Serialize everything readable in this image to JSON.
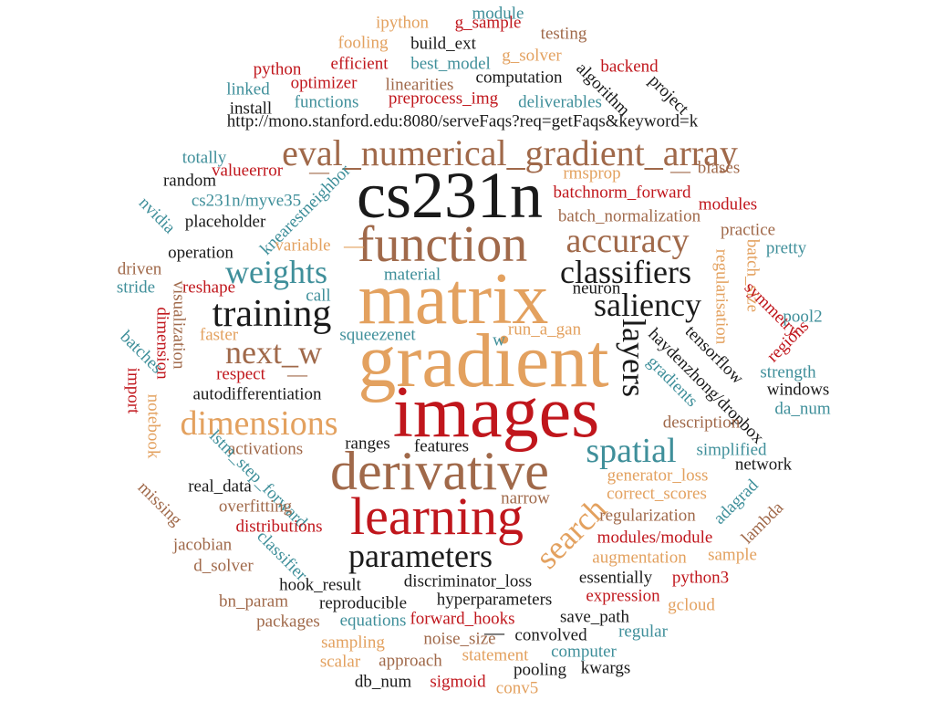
{
  "colors": {
    "dark": "#1a1a1a",
    "red": "#c0161c",
    "brown": "#a0694a",
    "tan": "#e3a15f",
    "teal": "#3f8f9a"
  },
  "words": [
    {
      "id": "cs231n",
      "text": "cs231n",
      "color": "dark"
    },
    {
      "id": "function",
      "text": "function",
      "color": "brown"
    },
    {
      "id": "matrix",
      "text": "matrix",
      "color": "tan"
    },
    {
      "id": "gradient",
      "text": "gradient",
      "color": "tan"
    },
    {
      "id": "images",
      "text": "images",
      "color": "red"
    },
    {
      "id": "derivative",
      "text": "derivative",
      "color": "brown"
    },
    {
      "id": "learning",
      "text": "learning",
      "color": "red"
    },
    {
      "id": "eval",
      "text": "eval_numerical_gradient_array",
      "color": "brown"
    },
    {
      "id": "accuracy",
      "text": "accuracy",
      "color": "brown"
    },
    {
      "id": "classifiers",
      "text": "classifiers",
      "color": "dark"
    },
    {
      "id": "weights",
      "text": "weights",
      "color": "teal"
    },
    {
      "id": "saliency",
      "text": "saliency",
      "color": "dark"
    },
    {
      "id": "training",
      "text": "training",
      "color": "dark"
    },
    {
      "id": "next_w",
      "text": "next_w",
      "color": "brown"
    },
    {
      "id": "dimensions",
      "text": "dimensions",
      "color": "tan"
    },
    {
      "id": "spatial",
      "text": "spatial",
      "color": "teal"
    },
    {
      "id": "parameters",
      "text": "parameters",
      "color": "dark"
    },
    {
      "id": "layers",
      "text": "layers",
      "color": "dark"
    },
    {
      "id": "search",
      "text": "search",
      "color": "tan"
    },
    {
      "id": "url",
      "text": "http://mono.stanford.edu:8080/serveFaqs?req=getFaqs&keyword=k",
      "color": "dark"
    },
    {
      "id": "ipython",
      "text": "ipython",
      "color": "tan"
    },
    {
      "id": "g_sample",
      "text": "g_sample",
      "color": "red"
    },
    {
      "id": "module",
      "text": "module",
      "color": "teal"
    },
    {
      "id": "fooling",
      "text": "fooling",
      "color": "tan"
    },
    {
      "id": "build_ext",
      "text": "build_ext",
      "color": "dark"
    },
    {
      "id": "testing",
      "text": "testing",
      "color": "brown"
    },
    {
      "id": "g_solver",
      "text": "g_solver",
      "color": "tan"
    },
    {
      "id": "python",
      "text": "python",
      "color": "red"
    },
    {
      "id": "efficient",
      "text": "efficient",
      "color": "red"
    },
    {
      "id": "best_model",
      "text": "best_model",
      "color": "teal"
    },
    {
      "id": "computation",
      "text": "computation",
      "color": "dark"
    },
    {
      "id": "backend",
      "text": "backend",
      "color": "red"
    },
    {
      "id": "algorithm",
      "text": "algorithm",
      "color": "dark"
    },
    {
      "id": "optimizer",
      "text": "optimizer",
      "color": "red"
    },
    {
      "id": "linearities",
      "text": "linearities",
      "color": "brown"
    },
    {
      "id": "linked",
      "text": "linked",
      "color": "teal"
    },
    {
      "id": "project",
      "text": "project",
      "color": "dark"
    },
    {
      "id": "preprocess_img",
      "text": "preprocess_img",
      "color": "red"
    },
    {
      "id": "functions",
      "text": "functions",
      "color": "teal"
    },
    {
      "id": "deliverables",
      "text": "deliverables",
      "color": "teal"
    },
    {
      "id": "install",
      "text": "install",
      "color": "dark"
    },
    {
      "id": "totally",
      "text": "totally",
      "color": "teal"
    },
    {
      "id": "rmsprop",
      "text": "rmsprop",
      "color": "tan"
    },
    {
      "id": "biases",
      "text": "biases",
      "color": "brown"
    },
    {
      "id": "random",
      "text": "random",
      "color": "dark"
    },
    {
      "id": "valueerror",
      "text": "valueerror",
      "color": "red"
    },
    {
      "id": "myve35",
      "text": "cs231n/myve35",
      "color": "teal"
    },
    {
      "id": "batchnorm_forward",
      "text": "batchnorm_forward",
      "color": "red"
    },
    {
      "id": "modules",
      "text": "modules",
      "color": "red"
    },
    {
      "id": "knearest",
      "text": "knearestneighbor",
      "color": "teal"
    },
    {
      "id": "nvidia",
      "text": "nvidia",
      "color": "teal"
    },
    {
      "id": "placeholder",
      "text": "placeholder",
      "color": "dark"
    },
    {
      "id": "batch_norm",
      "text": "batch_normalization",
      "color": "brown"
    },
    {
      "id": "practice",
      "text": "practice",
      "color": "brown"
    },
    {
      "id": "operation",
      "text": "operation",
      "color": "dark"
    },
    {
      "id": "variable",
      "text": "variable",
      "color": "tan"
    },
    {
      "id": "pretty",
      "text": "pretty",
      "color": "teal"
    },
    {
      "id": "driven",
      "text": "driven",
      "color": "brown"
    },
    {
      "id": "regularisation",
      "text": "regularisation",
      "color": "tan"
    },
    {
      "id": "batch_size",
      "text": "batch_size",
      "color": "tan"
    },
    {
      "id": "symmetry",
      "text": "symmetry",
      "color": "red"
    },
    {
      "id": "material",
      "text": "material",
      "color": "teal"
    },
    {
      "id": "stride",
      "text": "stride",
      "color": "teal"
    },
    {
      "id": "reshape",
      "text": "reshape",
      "color": "red"
    },
    {
      "id": "call",
      "text": "call",
      "color": "teal"
    },
    {
      "id": "neuron",
      "text": "neuron",
      "color": "dark"
    },
    {
      "id": "visualization",
      "text": "visualization",
      "color": "brown"
    },
    {
      "id": "tensorflow",
      "text": "tensorflow",
      "color": "dark"
    },
    {
      "id": "pool2",
      "text": "pool2",
      "color": "teal"
    },
    {
      "id": "dimension",
      "text": "dimension",
      "color": "red"
    },
    {
      "id": "squeezenet",
      "text": "squeezenet",
      "color": "teal"
    },
    {
      "id": "run_a_gan",
      "text": "run_a_gan",
      "color": "tan"
    },
    {
      "id": "w",
      "text": "w",
      "color": "teal"
    },
    {
      "id": "regions",
      "text": "regions",
      "color": "red"
    },
    {
      "id": "faster",
      "text": "faster",
      "color": "tan"
    },
    {
      "id": "haydenzhong",
      "text": "haydenzhong/dropbox",
      "color": "dark"
    },
    {
      "id": "batches",
      "text": "batches",
      "color": "teal"
    },
    {
      "id": "respect",
      "text": "respect",
      "color": "red"
    },
    {
      "id": "gradients",
      "text": "gradients",
      "color": "teal"
    },
    {
      "id": "strength",
      "text": "strength",
      "color": "teal"
    },
    {
      "id": "import",
      "text": "import",
      "color": "red"
    },
    {
      "id": "notebook",
      "text": "notebook",
      "color": "tan"
    },
    {
      "id": "autodiff",
      "text": "autodifferentiation",
      "color": "dark"
    },
    {
      "id": "windows",
      "text": "windows",
      "color": "dark"
    },
    {
      "id": "da_num",
      "text": "da_num",
      "color": "teal"
    },
    {
      "id": "description",
      "text": "description",
      "color": "brown"
    },
    {
      "id": "activations",
      "text": "activations",
      "color": "brown"
    },
    {
      "id": "ranges",
      "text": "ranges",
      "color": "dark"
    },
    {
      "id": "features",
      "text": "features",
      "color": "dark"
    },
    {
      "id": "simplified",
      "text": "simplified",
      "color": "teal"
    },
    {
      "id": "lstm",
      "text": "lstm_step_forward",
      "color": "teal"
    },
    {
      "id": "network",
      "text": "network",
      "color": "dark"
    },
    {
      "id": "real_data",
      "text": "real_data",
      "color": "dark"
    },
    {
      "id": "generator_loss",
      "text": "generator_loss",
      "color": "tan"
    },
    {
      "id": "missing",
      "text": "missing",
      "color": "brown"
    },
    {
      "id": "overfitting",
      "text": "overfitting",
      "color": "brown"
    },
    {
      "id": "narrow",
      "text": "narrow",
      "color": "brown"
    },
    {
      "id": "correct_scores",
      "text": "correct_scores",
      "color": "tan"
    },
    {
      "id": "adagrad",
      "text": "adagrad",
      "color": "teal"
    },
    {
      "id": "regularization",
      "text": "regularization",
      "color": "brown"
    },
    {
      "id": "distributions",
      "text": "distributions",
      "color": "red"
    },
    {
      "id": "lambda",
      "text": "lambda",
      "color": "brown"
    },
    {
      "id": "jacobian",
      "text": "jacobian",
      "color": "brown"
    },
    {
      "id": "classifier",
      "text": "classifier",
      "color": "teal"
    },
    {
      "id": "modules_module",
      "text": "modules/module",
      "color": "red"
    },
    {
      "id": "augmentation",
      "text": "augmentation",
      "color": "tan"
    },
    {
      "id": "sample",
      "text": "sample",
      "color": "tan"
    },
    {
      "id": "d_solver",
      "text": "d_solver",
      "color": "brown"
    },
    {
      "id": "hook_result",
      "text": "hook_result",
      "color": "dark"
    },
    {
      "id": "disc_loss",
      "text": "discriminator_loss",
      "color": "dark"
    },
    {
      "id": "essentially",
      "text": "essentially",
      "color": "dark"
    },
    {
      "id": "python3",
      "text": "python3",
      "color": "red"
    },
    {
      "id": "bn_param",
      "text": "bn_param",
      "color": "brown"
    },
    {
      "id": "reproducible",
      "text": "reproducible",
      "color": "dark"
    },
    {
      "id": "hyperparameters",
      "text": "hyperparameters",
      "color": "dark"
    },
    {
      "id": "expression",
      "text": "expression",
      "color": "red"
    },
    {
      "id": "gcloud",
      "text": "gcloud",
      "color": "tan"
    },
    {
      "id": "packages",
      "text": "packages",
      "color": "brown"
    },
    {
      "id": "equations",
      "text": "equations",
      "color": "teal"
    },
    {
      "id": "forward_hooks",
      "text": "forward_hooks",
      "color": "red"
    },
    {
      "id": "save_path",
      "text": "save_path",
      "color": "dark"
    },
    {
      "id": "noise_size",
      "text": "noise_size",
      "color": "brown"
    },
    {
      "id": "convolved",
      "text": "convolved",
      "color": "dark"
    },
    {
      "id": "regular",
      "text": "regular",
      "color": "teal"
    },
    {
      "id": "sampling",
      "text": "sampling",
      "color": "tan"
    },
    {
      "id": "computer",
      "text": "computer",
      "color": "teal"
    },
    {
      "id": "scalar",
      "text": "scalar",
      "color": "tan"
    },
    {
      "id": "approach",
      "text": "approach",
      "color": "brown"
    },
    {
      "id": "statement",
      "text": "statement",
      "color": "tan"
    },
    {
      "id": "pooling",
      "text": "pooling",
      "color": "dark"
    },
    {
      "id": "kwargs",
      "text": "kwargs",
      "color": "dark"
    },
    {
      "id": "db_num",
      "text": "db_num",
      "color": "dark"
    },
    {
      "id": "sigmoid",
      "text": "sigmoid",
      "color": "red"
    },
    {
      "id": "conv5",
      "text": "conv5",
      "color": "tan"
    },
    {
      "id": "dash1",
      "text": "—",
      "color": "brown"
    },
    {
      "id": "dash2",
      "text": "—",
      "color": "brown"
    },
    {
      "id": "dash3",
      "text": "—",
      "color": "tan"
    },
    {
      "id": "dash4",
      "text": "—",
      "color": "brown"
    },
    {
      "id": "dash5",
      "text": "—",
      "color": "dark"
    }
  ]
}
